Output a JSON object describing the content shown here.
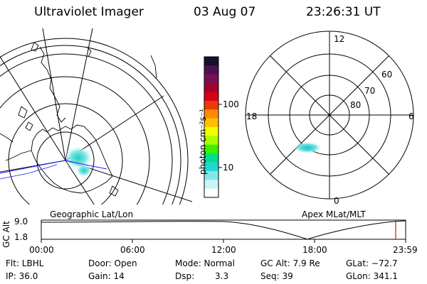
{
  "header": {
    "instrument": "Ultraviolet Imager",
    "date": "03 Aug 07",
    "time": "23:26:31 UT"
  },
  "colorbar": {
    "label": "photon cm⁻²s⁻¹",
    "ticks": [
      "100",
      "10"
    ],
    "colors": [
      "#1b0f2e",
      "#4a1250",
      "#7a0f55",
      "#a4002a",
      "#d2001a",
      "#ee3a00",
      "#ff8a00",
      "#ffc000",
      "#f0ff00",
      "#a8ff00",
      "#3cf000",
      "#00e08a",
      "#20d8d0",
      "#80e8e8",
      "#c8f4f4",
      "#ffffff"
    ]
  },
  "geo_map": {
    "label": "Geographic Lat/Lon"
  },
  "apex_map": {
    "label": "Apex MLat/MLT",
    "mlt_labels": {
      "top": "12",
      "left": "18",
      "right": "6",
      "bottom": "0"
    },
    "lat_labels": [
      "60",
      "70",
      "80"
    ]
  },
  "alt_plot": {
    "ylabel": "GC Alt",
    "yticks": [
      "9.0",
      "1.8"
    ],
    "xticks": [
      "00:00",
      "06:00",
      "12:00",
      "18:00",
      "23:59"
    ],
    "marker_color": "#d01010"
  },
  "footer": {
    "flt": "Flt: LBHL",
    "door": "Door: Open",
    "mode": "Mode: Normal",
    "gcalt": "GC Alt: 7.9 Re",
    "glat": "GLat: −72.7",
    "ip": "IP: 36.0",
    "gain": "Gain: 14",
    "dsp_label": "Dsp:",
    "dsp_value": "3.3",
    "seq": "Seq: 39",
    "glon": "GLon: 341.1"
  }
}
